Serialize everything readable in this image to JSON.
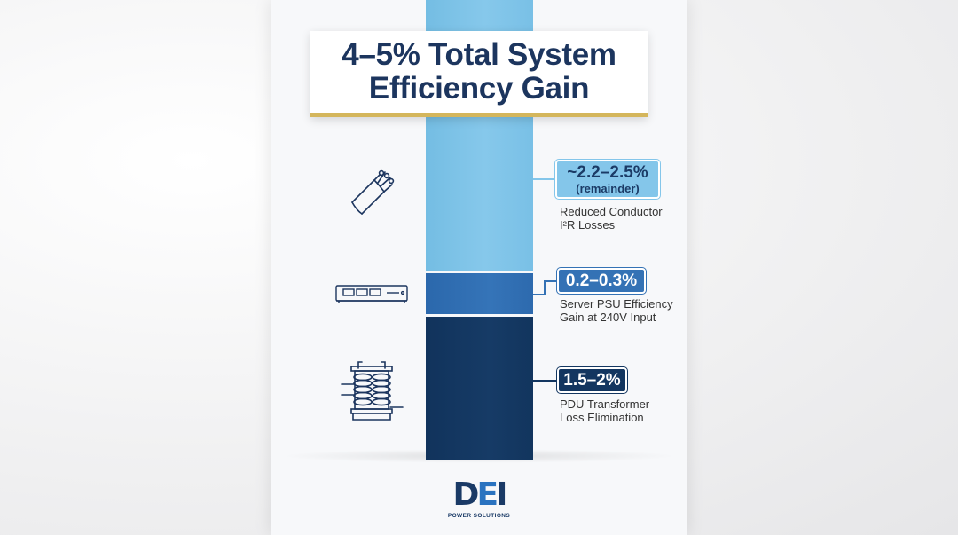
{
  "title": {
    "line1": "4–5% Total System",
    "line2": "Efficiency Gain"
  },
  "segments": [
    {
      "badge": "~2.2–2.5%",
      "badge_sub": "(remainder)",
      "description": "Reduced Conductor\nI²R Losses",
      "icon": "cable-icon",
      "color": "#7fc3e8"
    },
    {
      "badge": "0.2–0.3%",
      "description": "Server PSU Efficiency\nGain at 240V Input",
      "icon": "server-rack-icon",
      "color": "#3271b5"
    },
    {
      "badge": "1.5–2%",
      "description": "PDU Transformer\nLoss Elimination",
      "icon": "transformer-icon",
      "color": "#14375f"
    }
  ],
  "logo": {
    "mark": [
      "D",
      "E",
      "I"
    ],
    "tagline": "POWER SOLUTIONS"
  },
  "colors": {
    "accent_gold": "#d4b65c",
    "title_navy": "#1c355e"
  }
}
